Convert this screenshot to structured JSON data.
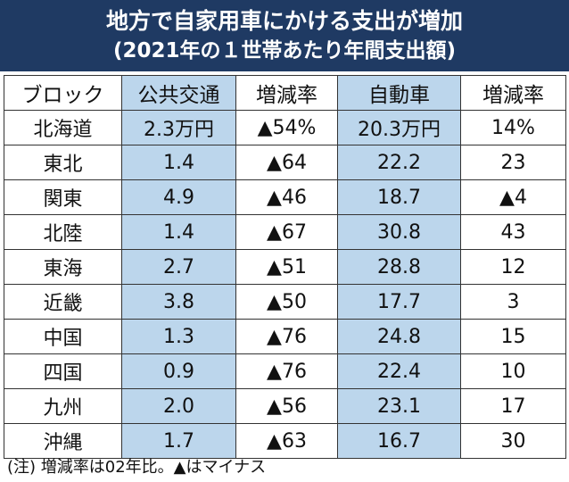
{
  "title": {
    "line1": "地方で自家用車にかける支出が増加",
    "line2": "(2021年の１世帯あたり年間支出額)"
  },
  "chart_data": {
    "type": "table",
    "columns": [
      "ブロック",
      "公共交通",
      "増減率",
      "自動車",
      "増減率"
    ],
    "rows": [
      [
        "北海道",
        "2.3万円",
        "▲54%",
        "20.3万円",
        "14%"
      ],
      [
        "東北",
        "1.4",
        "▲64",
        "22.2",
        "23"
      ],
      [
        "関東",
        "4.9",
        "▲46",
        "18.7",
        "▲4"
      ],
      [
        "北陸",
        "1.4",
        "▲67",
        "30.8",
        "43"
      ],
      [
        "東海",
        "2.7",
        "▲51",
        "28.8",
        "12"
      ],
      [
        "近畿",
        "3.8",
        "▲50",
        "17.7",
        "3"
      ],
      [
        "中国",
        "1.3",
        "▲76",
        "24.8",
        "15"
      ],
      [
        "四国",
        "0.9",
        "▲76",
        "22.4",
        "10"
      ],
      [
        "九州",
        "2.0",
        "▲56",
        "23.1",
        "17"
      ],
      [
        "沖縄",
        "1.7",
        "▲63",
        "16.7",
        "30"
      ]
    ],
    "shaded_columns": [
      1,
      3
    ],
    "shade_color": "#bcd6ec",
    "header_color": "#1f3a63"
  },
  "note": "(注) 増減率は02年比。▲はマイナス"
}
